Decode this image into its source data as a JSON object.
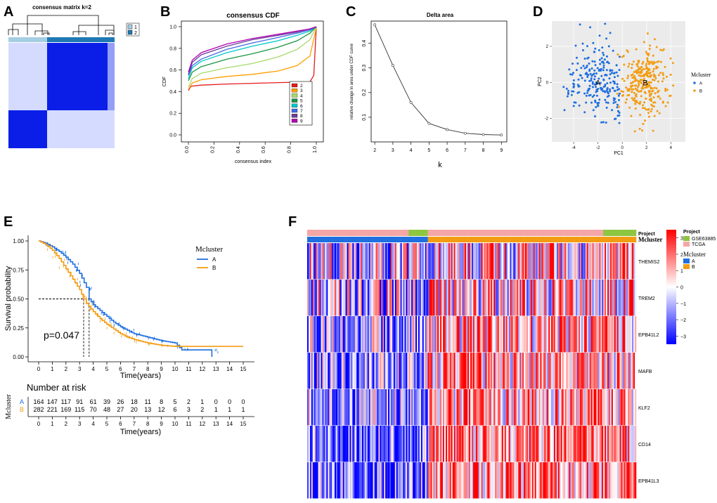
{
  "panel_labels": [
    "A",
    "B",
    "C",
    "D",
    "E",
    "F"
  ],
  "chart_data": [
    {
      "id": "A",
      "type": "heatmap",
      "title": "consensus matrix k=2",
      "legend": [
        "1",
        "2"
      ],
      "colors": {
        "c1": "#a6cee3",
        "c2": "#1f78b4",
        "cell": "#0a1ee8",
        "faint": "#c8d0ff"
      }
    },
    {
      "id": "B",
      "type": "line",
      "title": "consensus CDF",
      "xlabel": "consensus index",
      "ylabel": "CDF",
      "xlim": [
        0,
        1
      ],
      "ylim": [
        0,
        1
      ],
      "xticks": [
        "0.0",
        "0.2",
        "0.4",
        "0.6",
        "0.8",
        "1.0"
      ],
      "yticks": [
        "0.0",
        "0.2",
        "0.4",
        "0.6",
        "0.8",
        "1.0"
      ],
      "legend_position": "bottom-right",
      "series": [
        {
          "name": "2",
          "color": "#e41a1c",
          "points": [
            [
              0,
              0.41
            ],
            [
              0.02,
              0.45
            ],
            [
              0.1,
              0.46
            ],
            [
              0.3,
              0.47
            ],
            [
              0.6,
              0.48
            ],
            [
              0.95,
              0.49
            ],
            [
              0.98,
              0.55
            ],
            [
              1,
              1.0
            ]
          ]
        },
        {
          "name": "3",
          "color": "#ff9f00",
          "points": [
            [
              0,
              0.42
            ],
            [
              0.03,
              0.48
            ],
            [
              0.1,
              0.51
            ],
            [
              0.3,
              0.54
            ],
            [
              0.5,
              0.56
            ],
            [
              0.7,
              0.59
            ],
            [
              0.85,
              0.64
            ],
            [
              0.95,
              0.73
            ],
            [
              1,
              0.99
            ]
          ]
        },
        {
          "name": "4",
          "color": "#a6d96a",
          "points": [
            [
              0,
              0.44
            ],
            [
              0.03,
              0.52
            ],
            [
              0.1,
              0.57
            ],
            [
              0.3,
              0.62
            ],
            [
              0.5,
              0.66
            ],
            [
              0.7,
              0.72
            ],
            [
              0.85,
              0.79
            ],
            [
              0.95,
              0.88
            ],
            [
              1,
              1.0
            ]
          ]
        },
        {
          "name": "5",
          "color": "#1a9641",
          "points": [
            [
              0,
              0.5
            ],
            [
              0.03,
              0.58
            ],
            [
              0.1,
              0.63
            ],
            [
              0.3,
              0.7
            ],
            [
              0.5,
              0.75
            ],
            [
              0.7,
              0.81
            ],
            [
              0.85,
              0.87
            ],
            [
              0.95,
              0.94
            ],
            [
              1,
              1.0
            ]
          ]
        },
        {
          "name": "6",
          "color": "#00c8c8",
          "points": [
            [
              0,
              0.52
            ],
            [
              0.03,
              0.62
            ],
            [
              0.1,
              0.68
            ],
            [
              0.3,
              0.76
            ],
            [
              0.5,
              0.82
            ],
            [
              0.7,
              0.87
            ],
            [
              0.85,
              0.92
            ],
            [
              0.95,
              0.96
            ],
            [
              1,
              1.0
            ]
          ]
        },
        {
          "name": "7",
          "color": "#4169e1",
          "points": [
            [
              0,
              0.55
            ],
            [
              0.03,
              0.64
            ],
            [
              0.1,
              0.7
            ],
            [
              0.3,
              0.79
            ],
            [
              0.5,
              0.85
            ],
            [
              0.7,
              0.9
            ],
            [
              0.85,
              0.94
            ],
            [
              0.95,
              0.97
            ],
            [
              1,
              1.0
            ]
          ]
        },
        {
          "name": "8",
          "color": "#6a3d9a",
          "points": [
            [
              0,
              0.56
            ],
            [
              0.03,
              0.67
            ],
            [
              0.1,
              0.74
            ],
            [
              0.3,
              0.82
            ],
            [
              0.5,
              0.88
            ],
            [
              0.7,
              0.92
            ],
            [
              0.85,
              0.95
            ],
            [
              0.95,
              0.98
            ],
            [
              1,
              1.0
            ]
          ]
        },
        {
          "name": "9",
          "color": "#b000b0",
          "points": [
            [
              0,
              0.58
            ],
            [
              0.03,
              0.69
            ],
            [
              0.1,
              0.76
            ],
            [
              0.3,
              0.84
            ],
            [
              0.5,
              0.89
            ],
            [
              0.7,
              0.93
            ],
            [
              0.85,
              0.96
            ],
            [
              0.95,
              0.98
            ],
            [
              1,
              1.0
            ]
          ]
        }
      ]
    },
    {
      "id": "C",
      "type": "line",
      "title": "Delta area",
      "xlabel": "k",
      "ylabel": "relative change in area under CDF curve",
      "x": [
        2,
        3,
        4,
        5,
        6,
        7,
        8,
        9
      ],
      "values": [
        0.475,
        0.31,
        0.16,
        0.075,
        0.05,
        0.035,
        0.03,
        0.028
      ],
      "xlim": [
        1.8,
        9.3
      ],
      "ylim": [
        0,
        0.49
      ],
      "yticks": [
        "0.1",
        "0.2",
        "0.3",
        "0.4"
      ]
    },
    {
      "id": "D",
      "type": "scatter",
      "xlabel": "PC1",
      "ylabel": "PC2",
      "xlim": [
        -5.8,
        5.2
      ],
      "ylim": [
        -3.3,
        3.4
      ],
      "xticks": [
        "-4",
        "-2",
        "0",
        "2",
        "4"
      ],
      "yticks": [
        "-2",
        "0",
        "2"
      ],
      "legend_title": "Mcluster",
      "series": [
        {
          "name": "A",
          "label": "A",
          "color": "#1f6fe0",
          "n": 230,
          "center": [
            -2,
            0
          ],
          "spread": [
            1.2,
            1.1
          ]
        },
        {
          "name": "B",
          "label": "B",
          "color": "#f39c12",
          "n": 290,
          "center": [
            1.9,
            0
          ],
          "spread": [
            0.9,
            1.0
          ]
        }
      ]
    },
    {
      "id": "E",
      "type": "line",
      "xlabel": "Time(years)",
      "ylabel": "Survival probability",
      "xlim": [
        -0.7,
        15.5
      ],
      "ylim": [
        -0.04,
        1.04
      ],
      "xticks": [
        "0",
        "1",
        "2",
        "3",
        "4",
        "5",
        "6",
        "7",
        "8",
        "9",
        "10",
        "11",
        "12",
        "13",
        "14",
        "15"
      ],
      "yticks": [
        "0.00",
        "0.25",
        "0.50",
        "0.75",
        "1.00"
      ],
      "legend_title": "Mcluster",
      "pvalue": "p=0.047",
      "medians": [
        3.7,
        3.3
      ],
      "series": [
        {
          "name": "A",
          "color": "#1f6fe0",
          "points": [
            [
              0,
              1.0
            ],
            [
              0.5,
              0.98
            ],
            [
              1,
              0.95
            ],
            [
              1.5,
              0.91
            ],
            [
              2,
              0.86
            ],
            [
              2.5,
              0.8
            ],
            [
              3,
              0.72
            ],
            [
              3.5,
              0.6
            ],
            [
              3.7,
              0.5
            ],
            [
              4,
              0.45
            ],
            [
              4.5,
              0.4
            ],
            [
              5,
              0.35
            ],
            [
              5.5,
              0.3
            ],
            [
              6,
              0.26
            ],
            [
              6.5,
              0.23
            ],
            [
              7,
              0.2
            ],
            [
              8,
              0.17
            ],
            [
              9,
              0.14
            ],
            [
              10,
              0.12
            ],
            [
              10.5,
              0.06
            ],
            [
              12.7,
              0.06
            ],
            [
              12.7,
              0.0
            ]
          ]
        },
        {
          "name": "B",
          "color": "#f39c12",
          "points": [
            [
              0,
              1.0
            ],
            [
              0.5,
              0.97
            ],
            [
              1,
              0.92
            ],
            [
              1.5,
              0.85
            ],
            [
              2,
              0.76
            ],
            [
              2.5,
              0.67
            ],
            [
              3,
              0.58
            ],
            [
              3.3,
              0.5
            ],
            [
              3.5,
              0.46
            ],
            [
              4,
              0.39
            ],
            [
              4.5,
              0.33
            ],
            [
              5,
              0.28
            ],
            [
              5.5,
              0.24
            ],
            [
              6,
              0.2
            ],
            [
              6.5,
              0.17
            ],
            [
              7,
              0.15
            ],
            [
              8,
              0.12
            ],
            [
              9,
              0.1
            ],
            [
              10,
              0.09
            ],
            [
              15,
              0.09
            ]
          ]
        }
      ],
      "risk_table": {
        "title": "Number at risk",
        "group_label": "Mcluster",
        "xlabel": "Time(years)",
        "rows": [
          {
            "name": "A",
            "values": [
              "164",
              "147",
              "117",
              "91",
              "61",
              "39",
              "26",
              "18",
              "11",
              "8",
              "5",
              "2",
              "1",
              "0",
              "0",
              "0"
            ]
          },
          {
            "name": "B",
            "values": [
              "282",
              "221",
              "169",
              "115",
              "70",
              "48",
              "27",
              "20",
              "13",
              "12",
              "6",
              "3",
              "2",
              "1",
              "1",
              "1"
            ]
          }
        ]
      }
    },
    {
      "id": "F",
      "type": "heatmap",
      "genes": [
        "THEMIS2",
        "TREM2",
        "EPB41L2",
        "MAFB",
        "KLF2",
        "CD14",
        "EPB41L3"
      ],
      "annotation_rows": [
        "Project",
        "Mcluster"
      ],
      "project_legend_title": "Project",
      "project_levels": [
        "GSE63885",
        "TCGA"
      ],
      "project_colors": [
        "#8dc63f",
        "#f4a6a6"
      ],
      "mcluster_legend_title": "Mcluster",
      "mcluster_levels": [
        "A",
        "B"
      ],
      "mcluster_colors": [
        "#1f6fe0",
        "#f39c12"
      ],
      "colorbar_ticks": [
        "3",
        "2",
        "1",
        "0",
        "−1",
        "−2",
        "−3"
      ],
      "colorbar_range": [
        -3.5,
        3.5
      ],
      "high_color": "#ff0000",
      "low_color": "#0000ff"
    }
  ]
}
